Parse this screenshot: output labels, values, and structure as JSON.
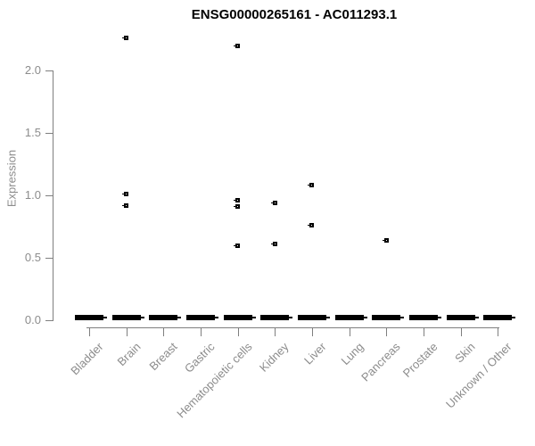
{
  "chart_data": {
    "type": "scatter",
    "title": "ENSG00000265161 - AC011293.1",
    "ylabel": "Expression",
    "xlabel": "",
    "ylim": [
      0,
      2.3
    ],
    "ytick_labels": [
      "0.0",
      "0.5",
      "1.0",
      "1.5",
      "2.0"
    ],
    "categories": [
      "Bladder",
      "Brain",
      "Breast",
      "Gastric",
      "Hematopoietic cells",
      "Kidney",
      "Liver",
      "Lung",
      "Pancreas",
      "Prostate",
      "Skin",
      "Unknown / Other"
    ],
    "series": [
      {
        "name": "expression-points",
        "points_by_category": {
          "Bladder": [],
          "Brain": [
            2.26,
            1.01,
            0.92
          ],
          "Breast": [],
          "Gastric": [],
          "Hematopoietic cells": [
            2.2,
            0.96,
            0.91,
            0.6
          ],
          "Kidney": [
            0.94,
            0.61
          ],
          "Liver": [
            1.08,
            0.76
          ],
          "Lung": [],
          "Pancreas": [
            0.64
          ],
          "Prostate": [],
          "Skin": [],
          "Unknown / Other": []
        }
      }
    ],
    "zero_cluster_all_categories": true,
    "zero_value": 0.0,
    "legend": "none",
    "grid": false
  },
  "colors": {
    "marker": "#000000",
    "axis": "#7f7f7f",
    "tick_label": "#8c8c8c",
    "title": "#000000",
    "background": "#ffffff"
  }
}
